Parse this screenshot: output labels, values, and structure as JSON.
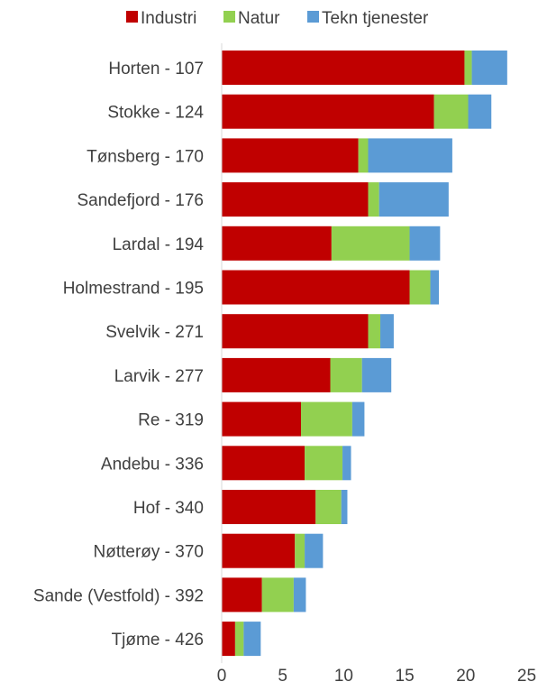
{
  "chart_data": {
    "type": "bar",
    "orientation": "horizontal",
    "stacked": true,
    "categories": [
      "Horten - 107",
      "Stokke - 124",
      "Tønsberg - 170",
      "Sandefjord - 176",
      "Lardal - 194",
      "Holmestrand - 195",
      "Svelvik - 271",
      "Larvik - 277",
      "Re - 319",
      "Andebu - 336",
      "Hof - 340",
      "Nøtterøy - 370",
      "Sande (Vestfold) - 392",
      "Tjøme - 426"
    ],
    "series": [
      {
        "name": "Industri",
        "color": "#c00000",
        "values": [
          19.9,
          17.4,
          11.2,
          12.0,
          9.0,
          15.4,
          12.0,
          8.9,
          6.5,
          6.8,
          7.7,
          6.0,
          3.3,
          1.1
        ]
      },
      {
        "name": "Natur",
        "color": "#92d050",
        "values": [
          0.6,
          2.8,
          0.8,
          0.9,
          6.4,
          1.7,
          1.0,
          2.6,
          4.2,
          3.1,
          2.1,
          0.8,
          2.6,
          0.7
        ]
      },
      {
        "name": "Tekn tjenester",
        "color": "#5b9bd5",
        "values": [
          2.9,
          1.9,
          6.9,
          5.7,
          2.5,
          0.7,
          1.1,
          2.4,
          1.0,
          0.7,
          0.5,
          1.5,
          1.0,
          1.4
        ]
      }
    ],
    "xticks": [
      0,
      5,
      10,
      15,
      20,
      25
    ],
    "xlim": [
      0,
      25
    ],
    "legend_position": "top",
    "grid": false
  }
}
